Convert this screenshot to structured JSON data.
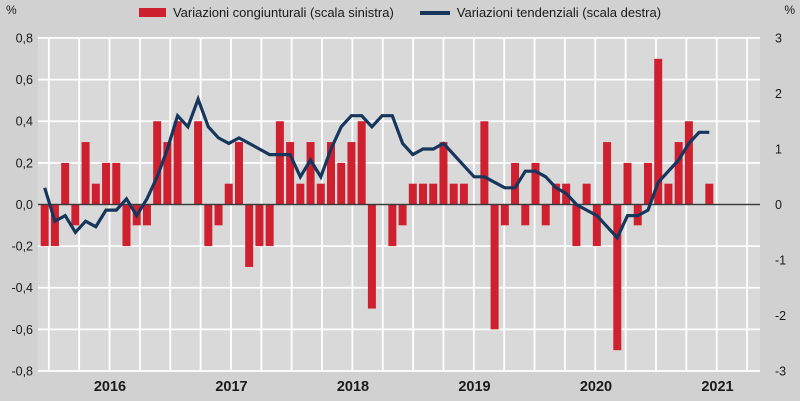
{
  "legend": {
    "bars_label": "Variazioni congiunturali (scala sinistra)",
    "line_label": "Variazioni tendenziali (scala destra)"
  },
  "axes": {
    "left_unit": "%",
    "right_unit": "%",
    "left_ticks": [
      "0,8",
      "0,6",
      "0,4",
      "0,2",
      "0,0",
      "-0,2",
      "-0,4",
      "-0,6",
      "-0,8"
    ],
    "right_ticks": [
      "3",
      "2",
      "1",
      "0",
      "-1",
      "-2",
      "-3"
    ],
    "x_ticks": [
      "2016",
      "2017",
      "2018",
      "2019",
      "2020",
      "2021"
    ],
    "left_range": [
      -0.8,
      0.8
    ],
    "right_range": [
      -3,
      3
    ]
  },
  "colors": {
    "bar": "#cf2030",
    "line": "#16365c",
    "plot_bg": "#d9d9d9",
    "page_bg": "#d1d1d1",
    "grid": "#ffffff",
    "zero_line": "#3a3a3a",
    "text": "#1a1a1a"
  },
  "chart_data": {
    "type": "combo",
    "title": "",
    "xlabel": "",
    "ylabel_left": "%",
    "ylabel_right": "%",
    "grid": true,
    "legend_position": "top",
    "x_axis_years": [
      "2016",
      "2017",
      "2018",
      "2019",
      "2020",
      "2021"
    ],
    "categories": [
      "2016-01",
      "2016-02",
      "2016-03",
      "2016-04",
      "2016-05",
      "2016-06",
      "2016-07",
      "2016-08",
      "2016-09",
      "2016-10",
      "2016-11",
      "2016-12",
      "2017-01",
      "2017-02",
      "2017-03",
      "2017-04",
      "2017-05",
      "2017-06",
      "2017-07",
      "2017-08",
      "2017-09",
      "2017-10",
      "2017-11",
      "2017-12",
      "2018-01",
      "2018-02",
      "2018-03",
      "2018-04",
      "2018-05",
      "2018-06",
      "2018-07",
      "2018-08",
      "2018-09",
      "2018-10",
      "2018-11",
      "2018-12",
      "2019-01",
      "2019-02",
      "2019-03",
      "2019-04",
      "2019-05",
      "2019-06",
      "2019-07",
      "2019-08",
      "2019-09",
      "2019-10",
      "2019-11",
      "2019-12",
      "2020-01",
      "2020-02",
      "2020-03",
      "2020-04",
      "2020-05",
      "2020-06",
      "2020-07",
      "2020-08",
      "2020-09",
      "2020-10",
      "2020-11",
      "2020-12",
      "2021-01",
      "2021-02",
      "2021-03",
      "2021-04",
      "2021-05",
      "2021-06"
    ],
    "series": [
      {
        "name": "Variazioni congiunturali (scala sinistra)",
        "type": "bar",
        "axis": "left",
        "axis_range": [
          -0.8,
          0.8
        ],
        "color": "#cf2030",
        "values": [
          -0.2,
          -0.2,
          0.2,
          -0.1,
          0.3,
          0.1,
          0.2,
          0.2,
          -0.2,
          -0.1,
          -0.1,
          0.4,
          0.3,
          0.4,
          0.0,
          0.4,
          -0.2,
          -0.1,
          0.1,
          0.3,
          -0.3,
          -0.2,
          -0.2,
          0.4,
          0.3,
          0.1,
          0.3,
          0.1,
          0.3,
          0.2,
          0.3,
          0.4,
          -0.5,
          0.0,
          -0.2,
          -0.1,
          0.1,
          0.1,
          0.1,
          0.3,
          0.1,
          0.1,
          0.0,
          0.4,
          -0.6,
          -0.1,
          0.2,
          -0.1,
          0.2,
          -0.1,
          0.1,
          0.1,
          -0.2,
          0.1,
          -0.2,
          0.3,
          -0.7,
          0.2,
          -0.1,
          0.2,
          0.7,
          0.1,
          0.3,
          0.4,
          0.0,
          0.1
        ]
      },
      {
        "name": "Variazioni tendenziali (scala destra)",
        "type": "line",
        "axis": "right",
        "axis_range": [
          -3,
          3
        ],
        "color": "#16365c",
        "values": [
          0.3,
          -0.3,
          -0.2,
          -0.5,
          -0.3,
          -0.4,
          -0.1,
          -0.1,
          0.1,
          -0.2,
          0.1,
          0.5,
          1.0,
          1.6,
          1.4,
          1.9,
          1.4,
          1.2,
          1.1,
          1.2,
          1.1,
          1.0,
          0.9,
          0.9,
          0.9,
          0.5,
          0.8,
          0.5,
          1.0,
          1.4,
          1.6,
          1.6,
          1.4,
          1.6,
          1.6,
          1.1,
          0.9,
          1.0,
          1.0,
          1.1,
          0.9,
          0.7,
          0.5,
          0.5,
          0.4,
          0.3,
          0.3,
          0.6,
          0.6,
          0.5,
          0.3,
          0.2,
          0.0,
          -0.1,
          -0.2,
          -0.4,
          -0.6,
          -0.2,
          -0.2,
          -0.1,
          0.4,
          0.6,
          0.8,
          1.1,
          1.3,
          1.3
        ]
      }
    ]
  }
}
